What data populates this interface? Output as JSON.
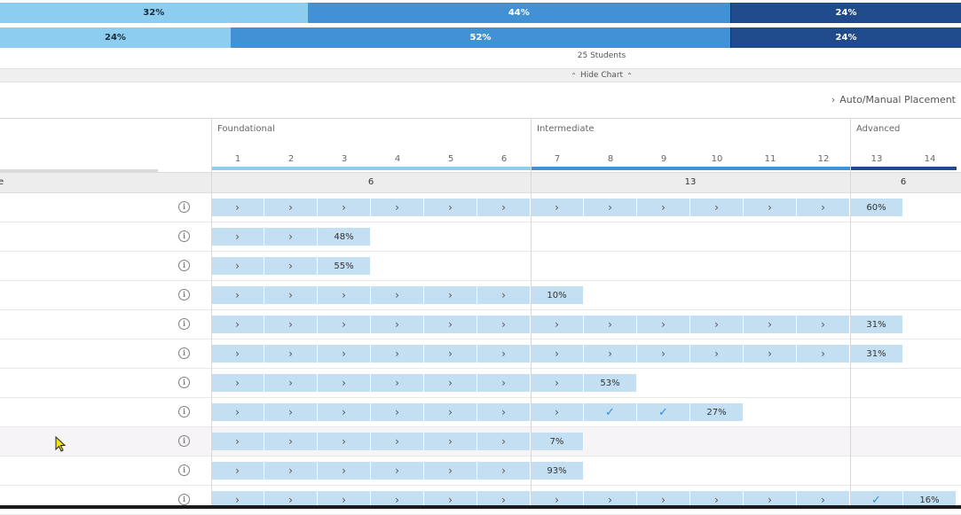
{
  "distribution_bars": [
    {
      "segments": [
        {
          "label": "32%",
          "value": 32,
          "tone": "light"
        },
        {
          "label": "44%",
          "value": 44,
          "tone": "mid"
        },
        {
          "label": "24%",
          "value": 24,
          "tone": "dark"
        }
      ]
    },
    {
      "segments": [
        {
          "label": "24%",
          "value": 24,
          "tone": "light"
        },
        {
          "label": "52%",
          "value": 52,
          "tone": "mid"
        },
        {
          "label": "24%",
          "value": 24,
          "tone": "dark"
        }
      ]
    }
  ],
  "students_label": "25 Students",
  "hide_chart_label": "Hide Chart",
  "placement_label": "Auto/Manual Placement",
  "groups": [
    {
      "name": "Foundational",
      "count": "6",
      "levels": [
        "1",
        "2",
        "3",
        "4",
        "5",
        "6"
      ],
      "color": "#8ccdf0"
    },
    {
      "name": "Intermediate",
      "count": "13",
      "levels": [
        "7",
        "8",
        "9",
        "10",
        "11",
        "12"
      ],
      "color": "#4191d4"
    },
    {
      "name": "Advanced",
      "count": "6",
      "levels": [
        "13",
        "14"
      ],
      "color": "#1f4a8c"
    }
  ],
  "left_header_fragment": "e",
  "rows": [
    {
      "cells": [
        ">",
        ">",
        ">",
        ">",
        ">",
        ">",
        ">",
        ">",
        ">",
        ">",
        ">",
        ">",
        "60%"
      ]
    },
    {
      "cells": [
        ">",
        ">",
        "48%"
      ]
    },
    {
      "cells": [
        ">",
        ">",
        "55%"
      ]
    },
    {
      "cells": [
        ">",
        ">",
        ">",
        ">",
        ">",
        ">",
        "10%"
      ]
    },
    {
      "cells": [
        ">",
        ">",
        ">",
        ">",
        ">",
        ">",
        ">",
        ">",
        ">",
        ">",
        ">",
        ">",
        "31%"
      ]
    },
    {
      "cells": [
        ">",
        ">",
        ">",
        ">",
        ">",
        ">",
        ">",
        ">",
        ">",
        ">",
        ">",
        ">",
        "31%"
      ]
    },
    {
      "cells": [
        ">",
        ">",
        ">",
        ">",
        ">",
        ">",
        ">",
        "53%"
      ]
    },
    {
      "cells": [
        ">",
        ">",
        ">",
        ">",
        ">",
        ">",
        ">",
        "✓",
        "✓",
        "27%"
      ]
    },
    {
      "cells": [
        ">",
        ">",
        ">",
        ">",
        ">",
        ">",
        "7%"
      ],
      "highlighted": true
    },
    {
      "cells": [
        ">",
        ">",
        ">",
        ">",
        ">",
        ">",
        "93%"
      ]
    },
    {
      "cells": [
        ">",
        ">",
        ">",
        ">",
        ">",
        ">",
        ">",
        ">",
        ">",
        ">",
        ">",
        ">",
        "✓",
        "16%"
      ]
    }
  ],
  "icons": {
    "info": "info-icon",
    "chevron": "chevron-right-icon",
    "check": "check-icon"
  }
}
